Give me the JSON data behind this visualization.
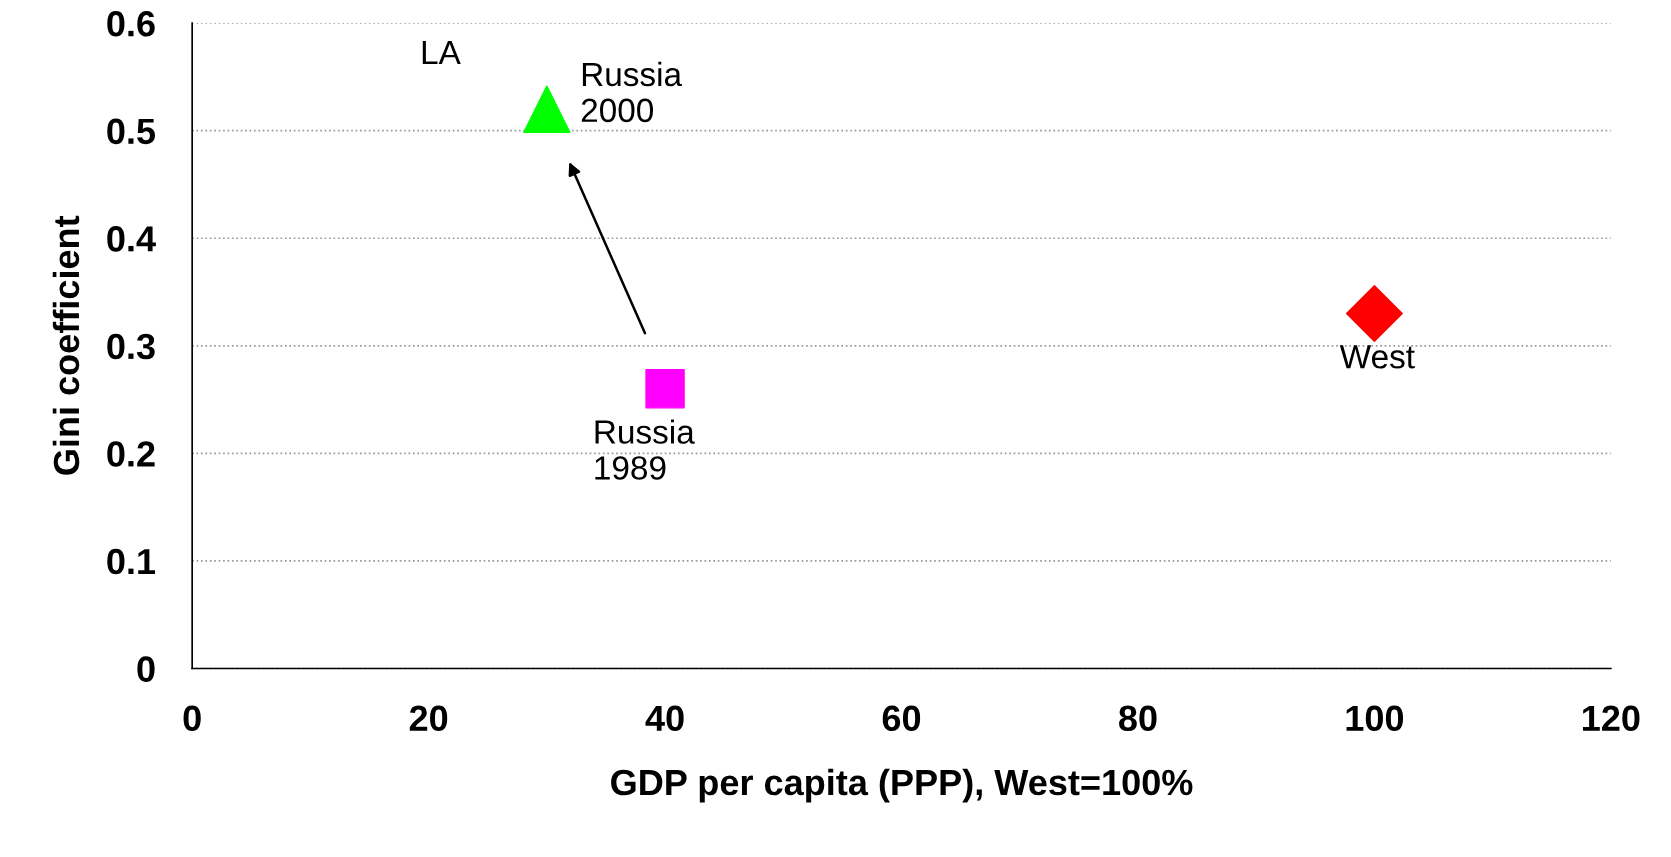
{
  "chart_data": {
    "type": "scatter",
    "xlabel": "GDP per capita (PPP), West=100%",
    "ylabel": "Gini coefficient",
    "series": [
      {
        "name": "Russia\n1989",
        "color": "#ff00ff",
        "marker": "square",
        "x": [
          40
        ],
        "values": [
          0.26
        ]
      },
      {
        "name": "Russia\n2000",
        "color": "#00ff00",
        "marker": "triangle",
        "x": [
          30
        ],
        "values": [
          0.52
        ]
      },
      {
        "name": "West",
        "color": "#ff0000",
        "marker": "diamond",
        "x": [
          100
        ],
        "values": [
          0.33
        ]
      }
    ],
    "annotations": [
      "LA"
    ],
    "xlim": [
      0,
      120
    ],
    "xticks": [
      0,
      20,
      40,
      60,
      80,
      100,
      120
    ],
    "ylim": [
      0,
      0.6
    ],
    "yticks": [
      0,
      0.1,
      0.2,
      0.3,
      0.4,
      0.5,
      0.6
    ],
    "grid": "y"
  }
}
